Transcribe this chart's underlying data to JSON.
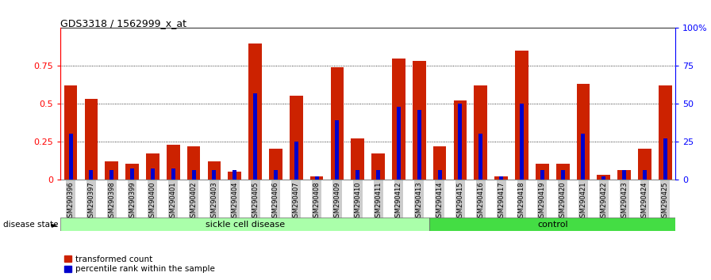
{
  "title": "GDS3318 / 1562999_x_at",
  "samples": [
    "GSM290396",
    "GSM290397",
    "GSM290398",
    "GSM290399",
    "GSM290400",
    "GSM290401",
    "GSM290402",
    "GSM290403",
    "GSM290404",
    "GSM290405",
    "GSM290406",
    "GSM290407",
    "GSM290408",
    "GSM290409",
    "GSM290410",
    "GSM290411",
    "GSM290412",
    "GSM290413",
    "GSM290414",
    "GSM290415",
    "GSM290416",
    "GSM290417",
    "GSM290418",
    "GSM290419",
    "GSM290420",
    "GSM290421",
    "GSM290422",
    "GSM290423",
    "GSM290424",
    "GSM290425"
  ],
  "transformed_count": [
    0.62,
    0.53,
    0.12,
    0.1,
    0.17,
    0.23,
    0.22,
    0.12,
    0.05,
    0.9,
    0.2,
    0.55,
    0.02,
    0.74,
    0.27,
    0.17,
    0.8,
    0.78,
    0.22,
    0.52,
    0.62,
    0.02,
    0.85,
    0.1,
    0.1,
    0.63,
    0.03,
    0.06,
    0.2,
    0.62
  ],
  "percentile_rank": [
    0.3,
    0.06,
    0.06,
    0.07,
    0.07,
    0.07,
    0.06,
    0.06,
    0.06,
    0.57,
    0.06,
    0.25,
    0.02,
    0.39,
    0.06,
    0.06,
    0.48,
    0.46,
    0.06,
    0.5,
    0.3,
    0.02,
    0.5,
    0.06,
    0.06,
    0.3,
    0.02,
    0.06,
    0.06,
    0.27
  ],
  "n_sickle": 18,
  "n_control": 12,
  "sickle_color": "#aaffaa",
  "control_color": "#44dd44",
  "bar_color_red": "#cc2200",
  "bar_color_blue": "#0000cc",
  "bg_color": "#cccccc",
  "ylim_left": [
    0,
    1.0
  ],
  "ylim_right": [
    0,
    100
  ],
  "yticks_left": [
    0,
    0.25,
    0.5,
    0.75
  ],
  "yticks_right": [
    0,
    25,
    50,
    75,
    100
  ],
  "legend_transformed": "transformed count",
  "legend_percentile": "percentile rank within the sample",
  "bar_width": 0.65
}
